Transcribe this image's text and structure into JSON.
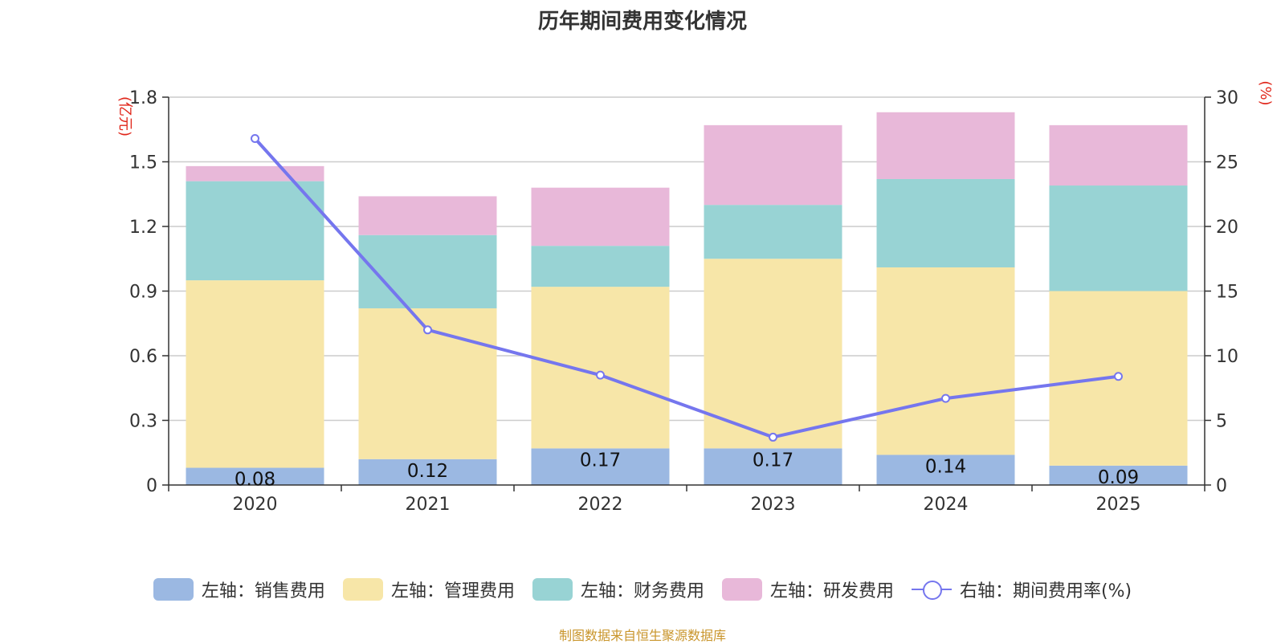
{
  "title": "历年期间费用变化情况",
  "source": "制图数据来自恒生聚源数据库",
  "chart_data": {
    "type": "bar",
    "stacked": true,
    "categories": [
      "2020",
      "2021",
      "2022",
      "2023",
      "2024",
      "2025"
    ],
    "left_axis": {
      "unit": "(亿元)",
      "ylim": [
        0,
        1.8
      ],
      "ticks": [
        "0",
        "0.3",
        "0.6",
        "0.9",
        "1.2",
        "1.5",
        "1.8"
      ]
    },
    "right_axis": {
      "unit": "(%)",
      "ylim": [
        0,
        30
      ],
      "ticks": [
        "0",
        "5",
        "10",
        "15",
        "20",
        "25",
        "30"
      ]
    },
    "series": [
      {
        "name": "左轴：销售费用",
        "axis": "left",
        "color": "#9bb8e2",
        "values": [
          0.08,
          0.12,
          0.17,
          0.17,
          0.14,
          0.09
        ],
        "labels": [
          "0.08",
          "0.12",
          "0.17",
          "0.17",
          "0.14",
          "0.09"
        ]
      },
      {
        "name": "左轴：管理费用",
        "axis": "left",
        "color": "#f7e6a8",
        "values": [
          0.87,
          0.7,
          0.75,
          0.88,
          0.87,
          0.81
        ]
      },
      {
        "name": "左轴：财务费用",
        "axis": "left",
        "color": "#98d3d4",
        "values": [
          0.46,
          0.34,
          0.19,
          0.25,
          0.41,
          0.49
        ]
      },
      {
        "name": "左轴：研发费用",
        "axis": "left",
        "color": "#e8b8d9",
        "values": [
          0.07,
          0.18,
          0.27,
          0.37,
          0.31,
          0.28
        ]
      },
      {
        "name": "右轴：期间费用率(%)",
        "axis": "right",
        "type": "line",
        "color": "#7576ee",
        "values": [
          26.8,
          12.0,
          8.5,
          3.7,
          6.7,
          8.4
        ]
      }
    ],
    "grid": true,
    "legend_position": "bottom"
  }
}
